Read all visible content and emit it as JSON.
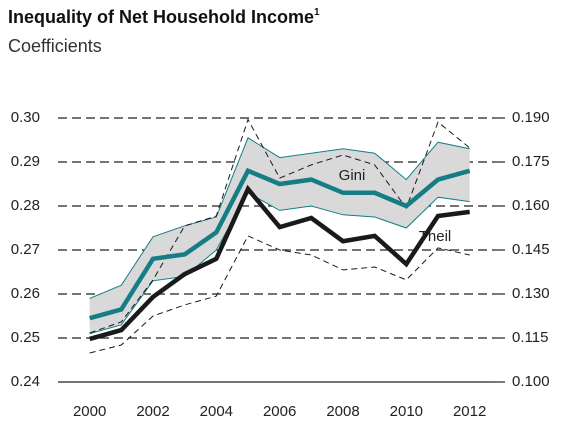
{
  "chart_data": {
    "type": "line",
    "title": "Inequality of Net Household Income",
    "title_footnote_marker": "1",
    "subtitle": "Coefficients",
    "x": [
      2000,
      2001,
      2002,
      2003,
      2004,
      2005,
      2006,
      2007,
      2008,
      2009,
      2010,
      2011,
      2012
    ],
    "xlim": [
      1999,
      2012.8
    ],
    "xticks": [
      2000,
      2002,
      2004,
      2006,
      2008,
      2010,
      2012
    ],
    "ylim": [
      0.24,
      0.3
    ],
    "yticks": [
      0.24,
      0.25,
      0.26,
      0.27,
      0.28,
      0.29,
      {
        "value": 0.3,
        "label": "0.30"
      }
    ],
    "y2lim": [
      0.1,
      0.19
    ],
    "y2ticks": [
      {
        "value": 0.1,
        "label": "0.100"
      },
      0.115,
      {
        "value": 0.13,
        "label": "0.130"
      },
      0.145,
      {
        "value": 0.16,
        "label": "0.160"
      },
      0.175,
      {
        "value": 0.19,
        "label": "0.190"
      }
    ],
    "grid": true,
    "series": [
      {
        "name": "Gini",
        "color": "#167d85",
        "axis": "y",
        "band_color": "#d9d9d9",
        "values": [
          0.2545,
          0.2565,
          0.268,
          0.269,
          0.274,
          0.288,
          0.285,
          0.286,
          0.283,
          0.283,
          0.28,
          0.286,
          0.288
        ],
        "upper": [
          0.259,
          0.262,
          0.273,
          0.2755,
          0.2775,
          0.2955,
          0.291,
          0.292,
          0.293,
          0.292,
          0.286,
          0.2945,
          0.293
        ],
        "lower": [
          0.251,
          0.253,
          0.263,
          0.264,
          0.27,
          0.283,
          0.279,
          0.28,
          0.278,
          0.2775,
          0.275,
          0.282,
          0.281
        ]
      },
      {
        "name": "Theil",
        "color": "#1a1a1a",
        "axis": "y2",
        "values": [
          0.1147,
          0.1177,
          0.129,
          0.1368,
          0.142,
          0.1658,
          0.1528,
          0.1559,
          0.148,
          0.1498,
          0.1402,
          0.1566,
          0.158
        ],
        "upper": [
          0.1167,
          0.1205,
          0.1348,
          0.1532,
          0.1566,
          0.1895,
          0.1695,
          0.174,
          0.1774,
          0.174,
          0.1593,
          0.1886,
          0.1798
        ],
        "lower": [
          0.1099,
          0.1126,
          0.1225,
          0.1263,
          0.1293,
          0.1498,
          0.145,
          0.1433,
          0.1382,
          0.1392,
          0.1348,
          0.1457,
          0.1433
        ]
      }
    ]
  }
}
